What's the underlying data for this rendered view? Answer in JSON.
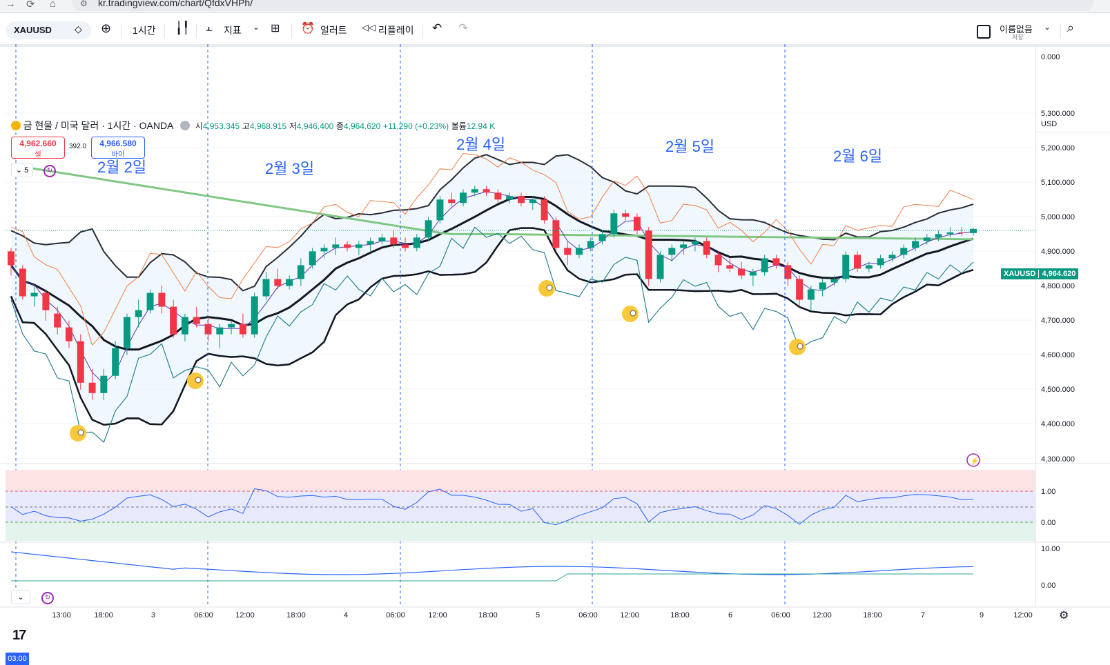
{
  "browser": {
    "url": "kr.tradingview.com/chart/QfdxVHPh/",
    "nav_icons": [
      "arrow-right-icon",
      "reload-icon",
      "home-icon",
      "site-settings-icon"
    ]
  },
  "toolbar": {
    "symbol": "XAUUSD",
    "interval": "1시간",
    "indicators_label": "지표",
    "alert_label": "얼러트",
    "replay_label": "리플레이",
    "layout_name": "이름없음",
    "save_label": "저장"
  },
  "legend": {
    "title": "금 현물 / 미국 달러 · 1시간 · OANDA",
    "open_label": "시",
    "open": "4,953.345",
    "high_label": "고",
    "high": "4,968.915",
    "low_label": "저",
    "low": "4,946.400",
    "close_label": "종",
    "close": "4,964.620",
    "change": "+11.290 (+0.23%)",
    "volume_label": "볼륨",
    "volume": "12.94 K"
  },
  "order_panel": {
    "sell_price": "4,962.660",
    "sell_label": "셀",
    "spread": "392.0",
    "buy_price": "4,966.580",
    "buy_label": "바이"
  },
  "indicator_pane_count": "5",
  "day_labels": [
    "2월 2일",
    "2월 3일",
    "2월 4일",
    "2월 5일",
    "2월 6일"
  ],
  "price_axis": {
    "currency": "USD",
    "labels": [
      "0.000",
      "5,300.000",
      "5,200.000",
      "5,100.000",
      "5,000.000",
      "4,900.000",
      "4,800.000",
      "4,700.000",
      "4,600.000",
      "4,500.000",
      "4,400.000",
      "4,300.000"
    ],
    "symbol_tag": "XAUUSD",
    "last_price": "4,964.620"
  },
  "osc_axis": {
    "labels": [
      "1.00",
      "0.00"
    ]
  },
  "lower_axis": {
    "labels": [
      "10.00",
      "0.00"
    ]
  },
  "time_axis": {
    "cursor_label": "03:00",
    "labels": [
      "13:00",
      "18:00",
      "3",
      "06:00",
      "12:00",
      "18:00",
      "4",
      "06:00",
      "12:00",
      "18:00",
      "5",
      "06:00",
      "12:00",
      "18:00",
      "6",
      "06:00",
      "12:00",
      "18:00",
      "7",
      "9",
      "12:00"
    ]
  },
  "colors": {
    "up": "#089981",
    "down": "#f23645",
    "accent": "#2962ff",
    "ma_green": "#81c784",
    "annotation_blue": "#2962ff"
  },
  "chart_data": {
    "type": "candlestick",
    "symbol": "XAUUSD",
    "interval": "1시간",
    "ylim": [
      4280,
      5360
    ],
    "days": [
      "2월 2일",
      "2월 3일",
      "2월 4일",
      "2월 5일",
      "2월 6일"
    ],
    "last": 4964.62,
    "ohlc_approx": [
      [
        4900,
        4910,
        4830,
        4860
      ],
      [
        4850,
        4860,
        4760,
        4770
      ],
      [
        4770,
        4800,
        4740,
        4780
      ],
      [
        4780,
        4790,
        4700,
        4730
      ],
      [
        4720,
        4740,
        4660,
        4680
      ],
      [
        4680,
        4700,
        4620,
        4640
      ],
      [
        4640,
        4660,
        4500,
        4520
      ],
      [
        4520,
        4560,
        4470,
        4490
      ],
      [
        4490,
        4560,
        4470,
        4540
      ],
      [
        4540,
        4640,
        4530,
        4620
      ],
      [
        4620,
        4720,
        4600,
        4710
      ],
      [
        4710,
        4760,
        4680,
        4730
      ],
      [
        4730,
        4790,
        4720,
        4780
      ],
      [
        4780,
        4800,
        4720,
        4740
      ],
      [
        4740,
        4760,
        4650,
        4660
      ],
      [
        4660,
        4720,
        4640,
        4710
      ],
      [
        4710,
        4740,
        4680,
        4690
      ],
      [
        4690,
        4710,
        4640,
        4660
      ],
      [
        4660,
        4690,
        4620,
        4680
      ],
      [
        4680,
        4700,
        4660,
        4690
      ],
      [
        4690,
        4720,
        4650,
        4660
      ],
      [
        4660,
        4780,
        4650,
        4770
      ],
      [
        4770,
        4840,
        4760,
        4820
      ],
      [
        4820,
        4850,
        4790,
        4800
      ],
      [
        4800,
        4830,
        4790,
        4820
      ],
      [
        4820,
        4880,
        4800,
        4860
      ],
      [
        4860,
        4910,
        4850,
        4900
      ],
      [
        4900,
        4920,
        4880,
        4910
      ],
      [
        4910,
        4940,
        4890,
        4920
      ],
      [
        4920,
        4930,
        4900,
        4910
      ],
      [
        4910,
        4930,
        4890,
        4920
      ],
      [
        4920,
        4940,
        4900,
        4930
      ],
      [
        4930,
        4950,
        4920,
        4940
      ],
      [
        4940,
        4960,
        4910,
        4920
      ],
      [
        4920,
        4940,
        4900,
        4910
      ],
      [
        4910,
        4950,
        4900,
        4940
      ],
      [
        4940,
        5000,
        4930,
        4990
      ],
      [
        4990,
        5060,
        4980,
        5050
      ],
      [
        5050,
        5070,
        5030,
        5040
      ],
      [
        5040,
        5080,
        5030,
        5070
      ],
      [
        5070,
        5090,
        5060,
        5080
      ],
      [
        5080,
        5090,
        5060,
        5070
      ],
      [
        5070,
        5080,
        5040,
        5050
      ],
      [
        5050,
        5070,
        5040,
        5060
      ],
      [
        5060,
        5070,
        5030,
        5040
      ],
      [
        5040,
        5060,
        5020,
        5050
      ],
      [
        5050,
        5060,
        4980,
        4990
      ],
      [
        4990,
        5000,
        4900,
        4910
      ],
      [
        4910,
        4930,
        4860,
        4890
      ],
      [
        4890,
        4920,
        4880,
        4910
      ],
      [
        4910,
        4940,
        4900,
        4930
      ],
      [
        4930,
        4960,
        4920,
        4950
      ],
      [
        4950,
        5020,
        4940,
        5010
      ],
      [
        5010,
        5020,
        4990,
        5000
      ],
      [
        5000,
        5010,
        4950,
        4960
      ],
      [
        4960,
        4970,
        4800,
        4820
      ],
      [
        4820,
        4900,
        4810,
        4890
      ],
      [
        4890,
        4920,
        4870,
        4910
      ],
      [
        4910,
        4930,
        4890,
        4920
      ],
      [
        4920,
        4940,
        4900,
        4930
      ],
      [
        4930,
        4940,
        4880,
        4890
      ],
      [
        4890,
        4900,
        4840,
        4860
      ],
      [
        4860,
        4880,
        4840,
        4850
      ],
      [
        4850,
        4870,
        4820,
        4830
      ],
      [
        4830,
        4850,
        4800,
        4840
      ],
      [
        4840,
        4890,
        4830,
        4880
      ],
      [
        4880,
        4890,
        4850,
        4860
      ],
      [
        4860,
        4870,
        4800,
        4820
      ],
      [
        4820,
        4830,
        4740,
        4760
      ],
      [
        4760,
        4800,
        4730,
        4790
      ],
      [
        4790,
        4820,
        4770,
        4810
      ],
      [
        4810,
        4830,
        4800,
        4820
      ],
      [
        4820,
        4900,
        4810,
        4890
      ],
      [
        4890,
        4900,
        4840,
        4850
      ],
      [
        4850,
        4870,
        4840,
        4860
      ],
      [
        4860,
        4890,
        4850,
        4880
      ],
      [
        4880,
        4900,
        4870,
        4890
      ],
      [
        4890,
        4920,
        4880,
        4910
      ],
      [
        4910,
        4940,
        4900,
        4930
      ],
      [
        4930,
        4950,
        4920,
        4940
      ],
      [
        4940,
        4960,
        4930,
        4950
      ],
      [
        4950,
        4970,
        4940,
        4955
      ],
      [
        4955,
        4970,
        4945,
        4953
      ],
      [
        4953,
        4969,
        4946,
        4965
      ]
    ]
  }
}
